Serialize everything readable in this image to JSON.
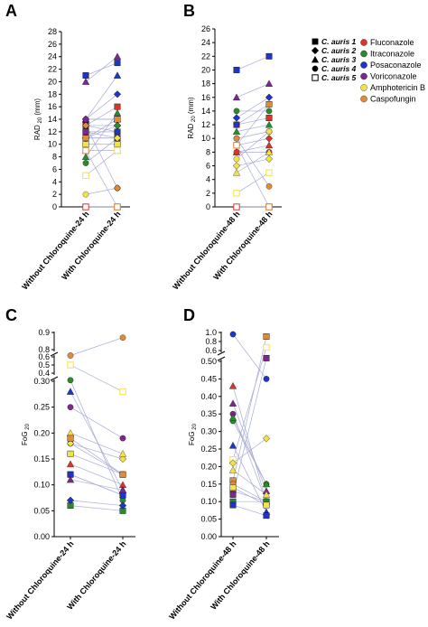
{
  "colors": {
    "Fluconazole": "#d9352b",
    "Itraconazole": "#2c8a2e",
    "Posaconazole": "#1f35c8",
    "Voriconazole": "#7b2a8c",
    "Amphotericin B": "#f2e24a",
    "Caspofungin": "#e08a3c",
    "link": "#a8acd6",
    "axis": "#000000"
  },
  "legend": {
    "strains": [
      {
        "label": "C. auris 1",
        "shape": "square"
      },
      {
        "label": "C. auris 2",
        "shape": "diamond"
      },
      {
        "label": "C. auris 3",
        "shape": "triangle"
      },
      {
        "label": "C. auris 4",
        "shape": "circle"
      },
      {
        "label": "C. auris 5",
        "shape": "open-square"
      }
    ],
    "drugs": [
      "Fluconazole",
      "Itraconazole",
      "Posaconazole",
      "Voriconazole",
      "Amphotericin B",
      "Caspofungin"
    ],
    "drug_label_display": [
      "Fluconazole",
      "Itraconazole",
      "Posaconazole",
      "Voriconazole",
      "Amphotericin B",
      "Caspofungin"
    ]
  },
  "chart_data": [
    {
      "panel": "A",
      "type": "scatter",
      "ylabel_main": "RAD",
      "ylabel_sub": "20",
      "ylabel_unit": "(mm)",
      "categories": [
        "Without Chloroquine-24 h",
        "With Chloroquine-24 h"
      ],
      "ylim": [
        0,
        28
      ],
      "yticks": [
        0,
        2,
        4,
        6,
        8,
        10,
        12,
        14,
        16,
        18,
        20,
        22,
        24,
        26,
        28
      ],
      "points": [
        {
          "drug": "Fluconazole",
          "shape": "square",
          "before": 13,
          "after": 16
        },
        {
          "drug": "Fluconazole",
          "shape": "diamond",
          "before": 13,
          "after": 13
        },
        {
          "drug": "Fluconazole",
          "shape": "triangle",
          "before": 14,
          "after": 14
        },
        {
          "drug": "Fluconazole",
          "shape": "circle",
          "before": 11,
          "after": 11
        },
        {
          "drug": "Fluconazole",
          "shape": "open-square",
          "before": 0,
          "after": 0
        },
        {
          "drug": "Itraconazole",
          "shape": "square",
          "before": 12,
          "after": 12
        },
        {
          "drug": "Itraconazole",
          "shape": "diamond",
          "before": 11,
          "after": 13
        },
        {
          "drug": "Itraconazole",
          "shape": "triangle",
          "before": 8,
          "after": 15
        },
        {
          "drug": "Itraconazole",
          "shape": "circle",
          "before": 7,
          "after": 11
        },
        {
          "drug": "Posaconazole",
          "shape": "square",
          "before": 21,
          "after": 23
        },
        {
          "drug": "Posaconazole",
          "shape": "diamond",
          "before": 14,
          "after": 18
        },
        {
          "drug": "Posaconazole",
          "shape": "triangle",
          "before": 14,
          "after": 21
        },
        {
          "drug": "Posaconazole",
          "shape": "circle",
          "before": 13,
          "after": 12
        },
        {
          "drug": "Voriconazole",
          "shape": "triangle",
          "before": 20,
          "after": 24
        },
        {
          "drug": "Voriconazole",
          "shape": "circle",
          "before": 14,
          "after": 14
        },
        {
          "drug": "Voriconazole",
          "shape": "square",
          "before": 12,
          "after": 11
        },
        {
          "drug": "Amphotericin B",
          "shape": "square",
          "before": 10,
          "after": 10
        },
        {
          "drug": "Amphotericin B",
          "shape": "diamond",
          "before": 11,
          "after": 11
        },
        {
          "drug": "Amphotericin B",
          "shape": "triangle",
          "before": 9,
          "after": 9
        },
        {
          "drug": "Amphotericin B",
          "shape": "circle",
          "before": 2,
          "after": 3
        },
        {
          "drug": "Amphotericin B",
          "shape": "open-square",
          "before": 5,
          "after": 9
        },
        {
          "drug": "Caspofungin",
          "shape": "diamond",
          "before": 13,
          "after": 3
        },
        {
          "drug": "Caspofungin",
          "shape": "square",
          "before": 11,
          "after": 14
        },
        {
          "drug": "Caspofungin",
          "shape": "open-square",
          "before": 9,
          "after": 0
        }
      ]
    },
    {
      "panel": "B",
      "type": "scatter",
      "ylabel_main": "RAD",
      "ylabel_sub": "20",
      "ylabel_unit": "(mm)",
      "categories": [
        "Without Chloroquine-48 h",
        "With Chloroquine-48 h"
      ],
      "ylim": [
        0,
        26
      ],
      "yticks": [
        0,
        2,
        4,
        6,
        8,
        10,
        12,
        14,
        16,
        18,
        20,
        22,
        24,
        26
      ],
      "points": [
        {
          "drug": "Fluconazole",
          "shape": "square",
          "before": 12,
          "after": 13
        },
        {
          "drug": "Fluconazole",
          "shape": "diamond",
          "before": 9,
          "after": 10
        },
        {
          "drug": "Fluconazole",
          "shape": "triangle",
          "before": 8,
          "after": 9
        },
        {
          "drug": "Fluconazole",
          "shape": "circle",
          "before": 8,
          "after": 8
        },
        {
          "drug": "Fluconazole",
          "shape": "open-square",
          "before": 0,
          "after": 0
        },
        {
          "drug": "Itraconazole",
          "shape": "circle",
          "before": 14,
          "after": 14
        },
        {
          "drug": "Itraconazole",
          "shape": "triangle",
          "before": 11,
          "after": 12
        },
        {
          "drug": "Posaconazole",
          "shape": "square",
          "before": 20,
          "after": 22
        },
        {
          "drug": "Posaconazole",
          "shape": "diamond",
          "before": 13,
          "after": 16
        },
        {
          "drug": "Posaconazole",
          "shape": "circle",
          "before": 12,
          "after": 15
        },
        {
          "drug": "Voriconazole",
          "shape": "triangle",
          "before": 16,
          "after": 18
        },
        {
          "drug": "Voriconazole",
          "shape": "circle",
          "before": 10,
          "after": 11
        },
        {
          "drug": "Amphotericin B",
          "shape": "diamond",
          "before": 6,
          "after": 7
        },
        {
          "drug": "Amphotericin B",
          "shape": "triangle",
          "before": 5,
          "after": 8
        },
        {
          "drug": "Amphotericin B",
          "shape": "open-square",
          "before": 2,
          "after": 5
        },
        {
          "drug": "Amphotericin B",
          "shape": "circle",
          "before": 7,
          "after": 11
        },
        {
          "drug": "Caspofungin",
          "shape": "square",
          "before": 9,
          "after": 15
        },
        {
          "drug": "Caspofungin",
          "shape": "circle",
          "before": 10,
          "after": 3
        },
        {
          "drug": "Caspofungin",
          "shape": "open-square",
          "before": 9,
          "after": 0
        }
      ]
    },
    {
      "panel": "C",
      "type": "scatter",
      "ylabel_main": "FoG",
      "ylabel_sub": "20",
      "categories": [
        "Without Chloroquine-24 h",
        "With Chloroquine-24 h"
      ],
      "ylim": [
        0,
        0.9
      ],
      "axis_break": [
        0.3,
        0.4,
        0.6,
        0.8
      ],
      "yticks": [
        0.0,
        0.05,
        0.1,
        0.15,
        0.2,
        0.25,
        0.3,
        0.4,
        0.5,
        0.6,
        0.8,
        0.9
      ],
      "tick_labels": [
        "0.00",
        "0.05",
        "0.10",
        "0.15",
        "0.20",
        "0.25",
        "0.30",
        "0.4",
        "0.5",
        "0.6",
        "0.8",
        "0.9"
      ],
      "points": [
        {
          "drug": "Fluconazole",
          "shape": "circle",
          "before": 0.18,
          "after": 0.12
        },
        {
          "drug": "Fluconazole",
          "shape": "square",
          "before": 0.12,
          "after": 0.08
        },
        {
          "drug": "Fluconazole",
          "shape": "triangle",
          "before": 0.14,
          "after": 0.1
        },
        {
          "drug": "Itraconazole",
          "shape": "circle",
          "before": 0.32,
          "after": 0.07
        },
        {
          "drug": "Itraconazole",
          "shape": "square",
          "before": 0.06,
          "after": 0.05
        },
        {
          "drug": "Posaconazole",
          "shape": "triangle",
          "before": 0.28,
          "after": 0.09
        },
        {
          "drug": "Posaconazole",
          "shape": "square",
          "before": 0.12,
          "after": 0.08
        },
        {
          "drug": "Posaconazole",
          "shape": "diamond",
          "before": 0.07,
          "after": 0.06
        },
        {
          "drug": "Voriconazole",
          "shape": "circle",
          "before": 0.25,
          "after": 0.19
        },
        {
          "drug": "Voriconazole",
          "shape": "triangle",
          "before": 0.11,
          "after": 0.09
        },
        {
          "drug": "Amphotericin B",
          "shape": "square",
          "before": 0.16,
          "after": 0.12
        },
        {
          "drug": "Amphotericin B",
          "shape": "diamond",
          "before": 0.18,
          "after": 0.15
        },
        {
          "drug": "Amphotericin B",
          "shape": "triangle",
          "before": 0.2,
          "after": 0.16
        },
        {
          "drug": "Amphotericin B",
          "shape": "open-square",
          "before": 0.5,
          "after": 0.28
        },
        {
          "drug": "Caspofungin",
          "shape": "circle",
          "before": 0.65,
          "after": 0.87
        },
        {
          "drug": "Caspofungin",
          "shape": "square",
          "before": 0.19,
          "after": 0.12
        }
      ]
    },
    {
      "panel": "D",
      "type": "scatter",
      "ylabel_main": "FoG",
      "ylabel_sub": "20",
      "categories": [
        "Without Chloroquine-48 h",
        "With Chloroquine-48 h"
      ],
      "ylim": [
        0,
        1.0
      ],
      "axis_break": [
        0.5,
        0.6
      ],
      "yticks": [
        0.0,
        0.05,
        0.1,
        0.15,
        0.2,
        0.25,
        0.3,
        0.35,
        0.4,
        0.45,
        0.5,
        0.6,
        0.8,
        1.0
      ],
      "tick_labels": [
        "0.00",
        "0.05",
        "0.10",
        "0.15",
        "0.20",
        "0.25",
        "0.30",
        "0.35",
        "0.40",
        "0.45",
        "0.50",
        "0.6",
        "0.8",
        "1.0"
      ],
      "points": [
        {
          "drug": "Posaconazole",
          "shape": "circle",
          "before": 0.96,
          "after": 0.45
        },
        {
          "drug": "Fluconazole",
          "shape": "triangle",
          "before": 0.43,
          "after": 0.1
        },
        {
          "drug": "Voriconazole",
          "shape": "triangle",
          "before": 0.38,
          "after": 0.13
        },
        {
          "drug": "Voriconazole",
          "shape": "circle",
          "before": 0.35,
          "after": 0.1
        },
        {
          "drug": "Itraconazole",
          "shape": "circle",
          "before": 0.33,
          "after": 0.15
        },
        {
          "drug": "Itraconazole",
          "shape": "triangle",
          "before": 0.34,
          "after": 0.15
        },
        {
          "drug": "Posaconazole",
          "shape": "triangle",
          "before": 0.26,
          "after": 0.07
        },
        {
          "drug": "Amphotericin B",
          "shape": "open-square",
          "before": 0.22,
          "after": 0.67
        },
        {
          "drug": "Amphotericin B",
          "shape": "diamond",
          "before": 0.21,
          "after": 0.28
        },
        {
          "drug": "Amphotericin B",
          "shape": "triangle",
          "before": 0.19,
          "after": 0.12
        },
        {
          "drug": "Caspofungin",
          "shape": "square",
          "before": 0.16,
          "after": 0.91
        },
        {
          "drug": "Caspofungin",
          "shape": "circle",
          "before": 0.15,
          "after": 0.1
        },
        {
          "drug": "Fluconazole",
          "shape": "square",
          "before": 0.13,
          "after": 0.1
        },
        {
          "drug": "Voriconazole",
          "shape": "square",
          "before": 0.12,
          "after": 0.56
        },
        {
          "drug": "Itraconazole",
          "shape": "square",
          "before": 0.1,
          "after": 0.1
        },
        {
          "drug": "Posaconazole",
          "shape": "square",
          "before": 0.09,
          "after": 0.06
        },
        {
          "drug": "Amphotericin B",
          "shape": "square",
          "before": 0.14,
          "after": 0.09
        }
      ]
    }
  ]
}
